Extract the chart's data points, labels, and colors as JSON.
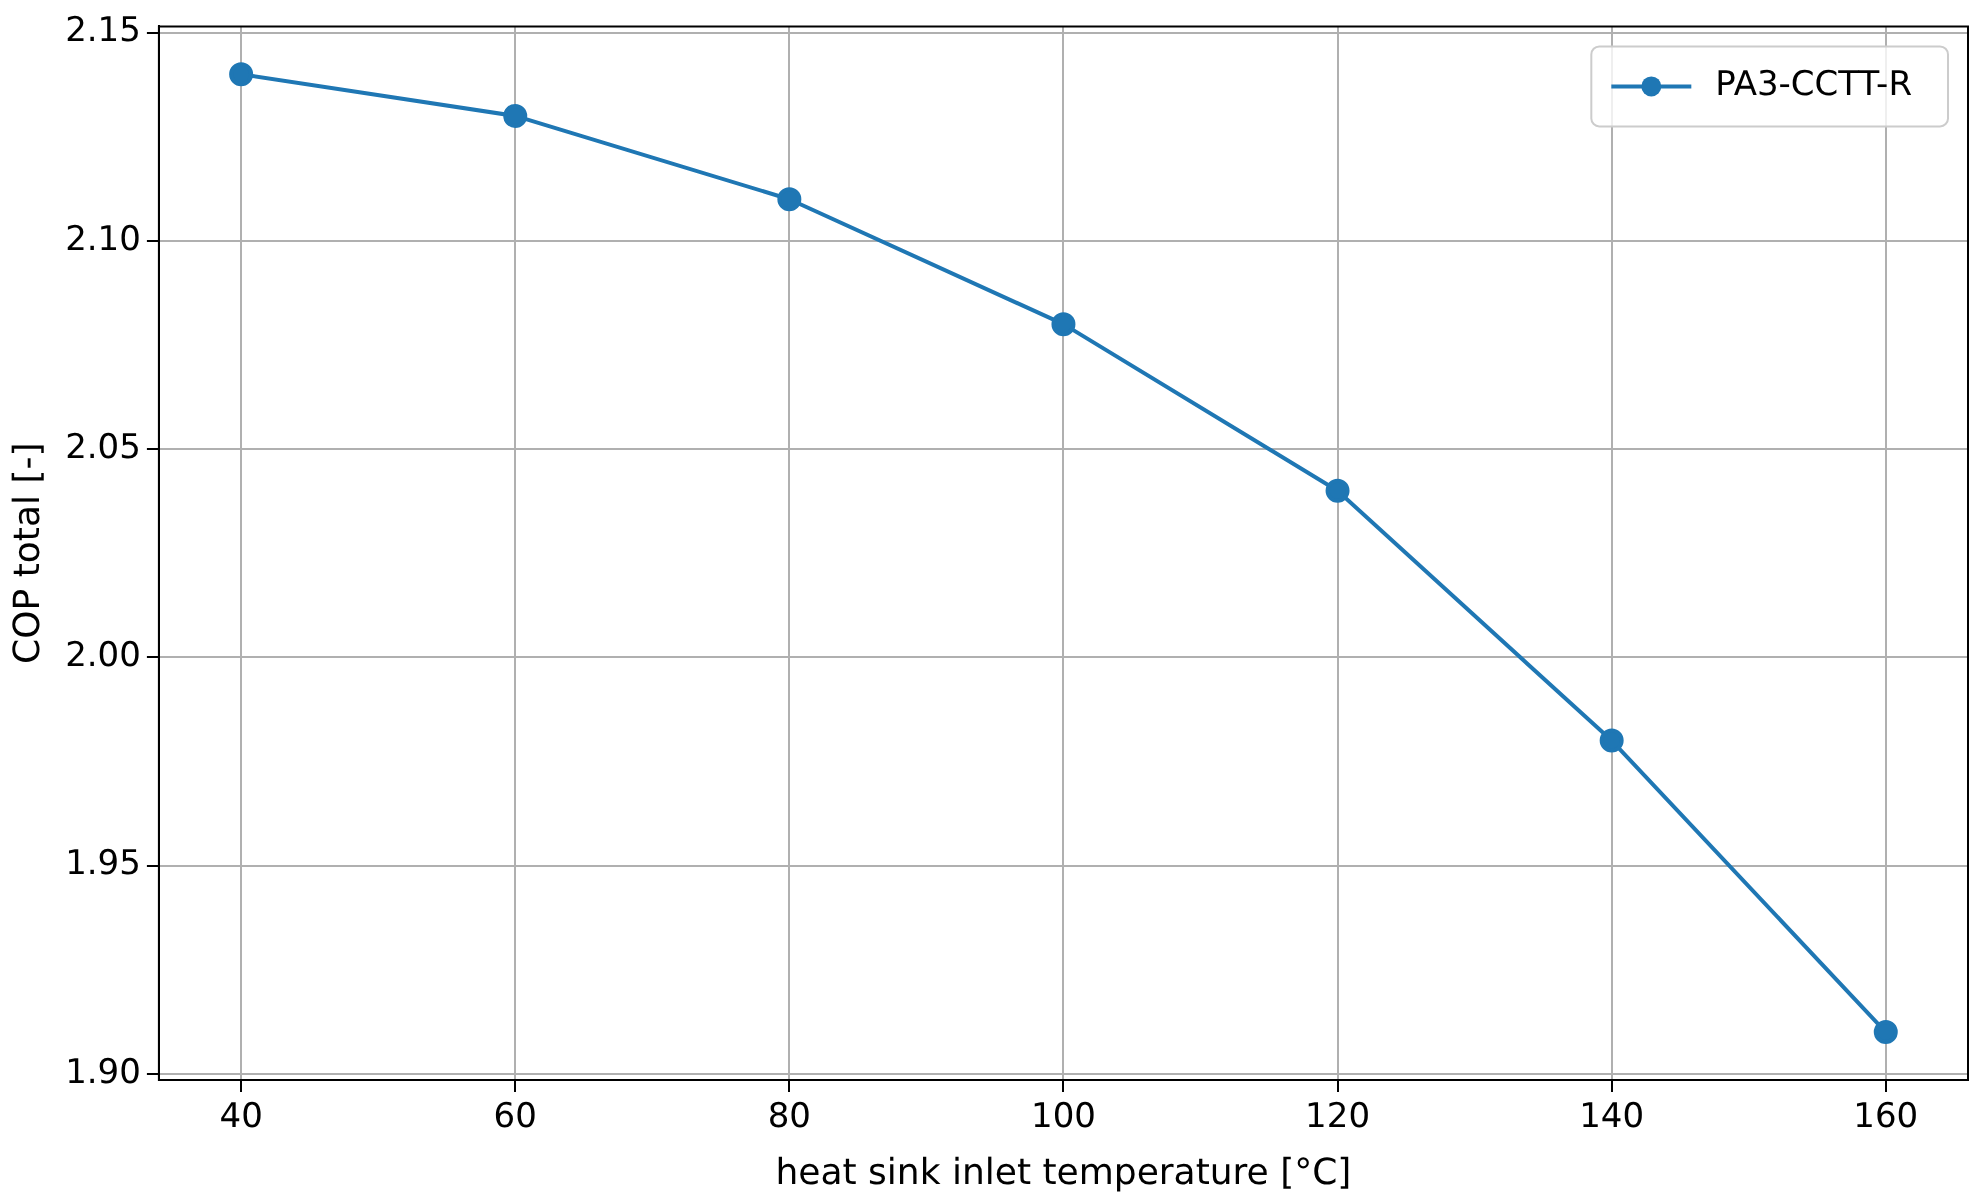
{
  "chart_data": {
    "type": "line",
    "xlabel": "heat sink inlet temperature [°C]",
    "ylabel": "COP total [-]",
    "x": [
      40,
      60,
      80,
      100,
      120,
      140,
      160
    ],
    "series": [
      {
        "name": "PA3-CCTT-R",
        "color": "#1f77b4",
        "values": [
          2.14,
          2.13,
          2.11,
          2.08,
          2.04,
          1.98,
          1.91
        ]
      }
    ],
    "xlim": [
      34,
      166
    ],
    "xticks": [
      40,
      60,
      80,
      100,
      120,
      140,
      160
    ],
    "ylim": [
      1.8985,
      2.1515
    ],
    "yticks": [
      {
        "value": 1.9,
        "label": "1.90"
      },
      {
        "value": 1.95,
        "label": "1.95"
      },
      {
        "value": 2.0,
        "label": "2.00"
      },
      {
        "value": 2.05,
        "label": "2.05"
      },
      {
        "value": 2.1,
        "label": "2.10"
      },
      {
        "value": 2.15,
        "label": "2.15"
      }
    ],
    "grid": true,
    "legend": "top right",
    "marker": "circle",
    "line_style": "solid"
  }
}
